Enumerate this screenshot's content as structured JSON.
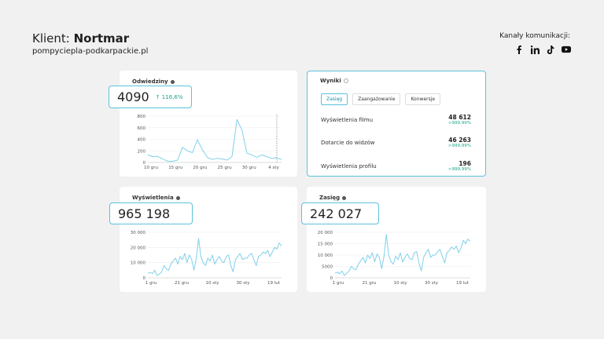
{
  "header": {
    "client_prefix": "Klient: ",
    "client_name": "Nortmar",
    "site": "pompyciepla-podkarpackie.pl",
    "channels_label": "Kanały komunikacji:",
    "channel_icons": [
      "facebook-icon",
      "linkedin-icon",
      "tiktok-icon",
      "youtube-icon"
    ]
  },
  "visits": {
    "title": "Odwiedziny",
    "value": "4090",
    "delta": "↑ 116,6%",
    "chart_data": {
      "type": "line",
      "x_ticks": [
        "10 gru",
        "15 gru",
        "20 gru",
        "25 gru",
        "30 gru",
        "4 sty"
      ],
      "y_ticks": [
        "0",
        "200",
        "400",
        "600",
        "800"
      ],
      "ylim": [
        0,
        800
      ],
      "values": [
        130,
        100,
        105,
        60,
        20,
        20,
        40,
        260,
        200,
        170,
        390,
        220,
        90,
        50,
        70,
        60,
        40,
        100,
        740,
        560,
        160,
        130,
        90,
        130,
        100,
        70,
        80,
        50
      ]
    }
  },
  "results": {
    "title": "Wyniki",
    "tabs": [
      "Zasięg",
      "Zaangażowanie",
      "Konwersje"
    ],
    "metrics": [
      {
        "label": "Wyświetlenia filmu",
        "value": "48 612",
        "delta": ">999,99%"
      },
      {
        "label": "Dotarcie do widzów",
        "value": "46 263",
        "delta": ">999,99%"
      },
      {
        "label": "Wyświetlenia profilu",
        "value": "196",
        "delta": ">999,99%"
      }
    ]
  },
  "views": {
    "title": "Wyświetlenia",
    "value": "965 198",
    "chart_data": {
      "type": "line",
      "x_ticks": [
        "1 gru",
        "21 gru",
        "10 sty",
        "30 sty",
        "19 lut"
      ],
      "y_ticks": [
        "0",
        "10 000",
        "20 000",
        "30 000"
      ],
      "ylim": [
        0,
        30000
      ],
      "values": [
        3000,
        3500,
        2800,
        5000,
        1500,
        2500,
        4000,
        8000,
        6000,
        5000,
        9000,
        11000,
        13000,
        9000,
        14000,
        12000,
        16000,
        10000,
        15000,
        12000,
        5000,
        13000,
        26000,
        14000,
        10000,
        8000,
        13000,
        11000,
        15000,
        9000,
        12000,
        14000,
        11000,
        10000,
        14000,
        15000,
        8000,
        4000,
        12000,
        14000,
        16000,
        12000,
        13000,
        13000,
        15000,
        16000,
        12000,
        8000,
        14000,
        15000,
        17000,
        16000,
        18000,
        14000,
        17000,
        20000,
        19000,
        23000,
        21000
      ]
    }
  },
  "reach": {
    "title": "Zasięg",
    "value": "242 027",
    "chart_data": {
      "type": "line",
      "x_ticks": [
        "1 gru",
        "21 gru",
        "10 sty",
        "30 sty",
        "19 lut"
      ],
      "y_ticks": [
        "0",
        "5000",
        "10 000",
        "15 000",
        "20 000"
      ],
      "ylim": [
        0,
        20000
      ],
      "values": [
        2000,
        2500,
        1800,
        3000,
        1000,
        2000,
        3000,
        5000,
        4000,
        3500,
        6000,
        7500,
        9000,
        6500,
        10000,
        8500,
        11000,
        7000,
        10500,
        9000,
        4000,
        9500,
        19000,
        10000,
        7000,
        6000,
        9500,
        8000,
        11000,
        7000,
        9000,
        10500,
        8500,
        8000,
        11000,
        11500,
        6500,
        3000,
        9000,
        11000,
        12500,
        9000,
        10000,
        10000,
        11500,
        12500,
        9500,
        6500,
        11000,
        12000,
        13500,
        12500,
        14000,
        11000,
        13000,
        16500,
        15000,
        17000,
        16000
      ]
    }
  }
}
